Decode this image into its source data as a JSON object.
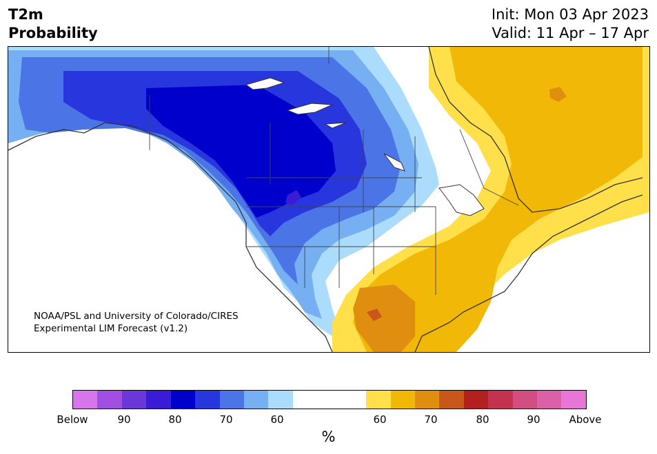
{
  "title": {
    "left_line1": "T2m",
    "left_line2": "Probability",
    "right_line1": "Init: Mon 03 Apr 2023",
    "right_line2": "Valid: 11 Apr – 17 Apr"
  },
  "credit": {
    "line1": "NOAA/PSL and University of Colorado/CIRES",
    "line2": "Experimental LIM Forecast (v1.2)"
  },
  "colorbar": {
    "below_colors": [
      "#d676ea",
      "#a04fe0",
      "#6a37d8",
      "#3a1bd6",
      "#0000cc",
      "#2836de",
      "#4b74e6",
      "#76b0f2",
      "#acdcfc"
    ],
    "neutral_color": "#ffffff",
    "above_colors": [
      "#ffe04a",
      "#f2b808",
      "#e08e10",
      "#c9561a",
      "#b2201f",
      "#c43250",
      "#d24d80",
      "#da60a8",
      "#e875d8"
    ],
    "ticks": [
      "Below",
      "90",
      "80",
      "70",
      "60",
      "60",
      "70",
      "80",
      "90",
      "Above"
    ],
    "unit": "%"
  }
}
